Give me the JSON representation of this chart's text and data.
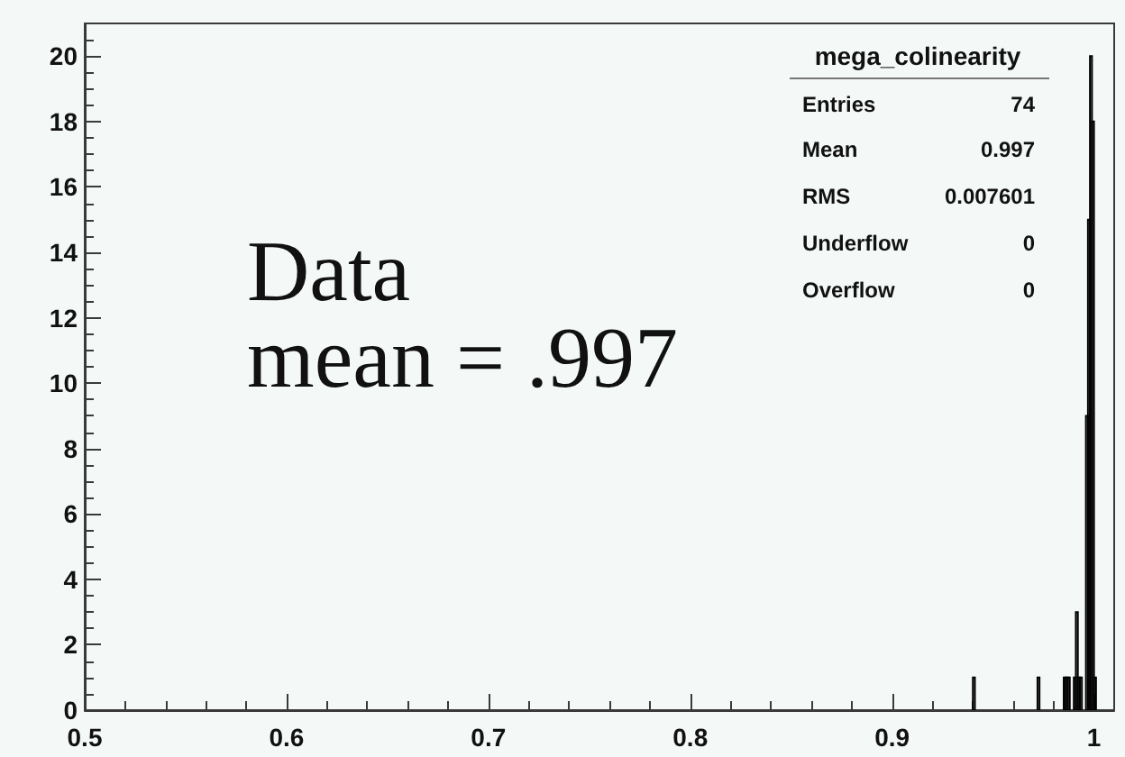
{
  "chart_data": {
    "type": "histogram",
    "bins": [
      0.94,
      0.941,
      0.942,
      0.943,
      0.944,
      0.945,
      0.946,
      0.947,
      0.948,
      0.949,
      0.95,
      0.951,
      0.952,
      0.953,
      0.954,
      0.955,
      0.956,
      0.957,
      0.958,
      0.959,
      0.96,
      0.961,
      0.962,
      0.963,
      0.964,
      0.965,
      0.966,
      0.967,
      0.968,
      0.969,
      0.97,
      0.971,
      0.972,
      0.973,
      0.974,
      0.975,
      0.976,
      0.977,
      0.978,
      0.979,
      0.98,
      0.981,
      0.982,
      0.983,
      0.984,
      0.985,
      0.986,
      0.987,
      0.988,
      0.989,
      0.99,
      0.991,
      0.992,
      0.993,
      0.994,
      0.995,
      0.996,
      0.997,
      0.998,
      0.999,
      1.0,
      1.001
    ],
    "values": [
      1,
      0,
      0,
      0,
      0,
      0,
      0,
      0,
      0,
      0,
      0,
      0,
      0,
      0,
      0,
      0,
      0,
      0,
      0,
      0,
      0,
      0,
      0,
      0,
      0,
      0,
      0,
      0,
      0,
      0,
      0,
      0,
      1,
      0,
      0,
      0,
      0,
      0,
      0,
      0,
      0,
      0,
      0,
      0,
      0,
      1,
      1,
      1,
      0,
      0,
      1,
      3,
      1,
      1,
      0,
      0,
      9,
      15,
      20,
      18,
      1
    ],
    "color": "#000000",
    "xlim": [
      0.5,
      1.01
    ],
    "ylim": [
      0,
      21
    ],
    "xticks": [
      0.5,
      {
        "value": 0.52,
        "label": null
      },
      {
        "value": 0.54,
        "label": null
      },
      {
        "value": 0.56,
        "label": null
      },
      {
        "value": 0.58,
        "label": null
      },
      0.6,
      {
        "value": 0.62,
        "label": null
      },
      {
        "value": 0.64,
        "label": null
      },
      {
        "value": 0.66,
        "label": null
      },
      {
        "value": 0.68,
        "label": null
      },
      0.7,
      {
        "value": 0.72,
        "label": null
      },
      {
        "value": 0.74,
        "label": null
      },
      {
        "value": 0.76,
        "label": null
      },
      {
        "value": 0.78,
        "label": null
      },
      0.8,
      {
        "value": 0.82,
        "label": null
      },
      {
        "value": 0.84,
        "label": null
      },
      {
        "value": 0.86,
        "label": null
      },
      {
        "value": 0.88,
        "label": null
      },
      0.9,
      {
        "value": 0.92,
        "label": null
      },
      {
        "value": 0.94,
        "label": null
      },
      {
        "value": 0.96,
        "label": null
      },
      {
        "value": 0.98,
        "label": null
      },
      1
    ],
    "yticks": [
      0,
      {
        "value": 0.5,
        "label": null
      },
      {
        "value": 1,
        "label": null
      },
      {
        "value": 1.5,
        "label": null
      },
      2,
      {
        "value": 2.5,
        "label": null
      },
      {
        "value": 3,
        "label": null
      },
      {
        "value": 3.5,
        "label": null
      },
      4,
      {
        "value": 4.5,
        "label": null
      },
      {
        "value": 5,
        "label": null
      },
      {
        "value": 5.5,
        "label": null
      },
      6,
      {
        "value": 6.5,
        "label": null
      },
      {
        "value": 7,
        "label": null
      },
      {
        "value": 7.5,
        "label": null
      },
      8,
      {
        "value": 8.5,
        "label": null
      },
      {
        "value": 9,
        "label": null
      },
      {
        "value": 9.5,
        "label": null
      },
      10,
      {
        "value": 10.5,
        "label": null
      },
      {
        "value": 11,
        "label": null
      },
      {
        "value": 11.5,
        "label": null
      },
      12,
      {
        "value": 12.5,
        "label": null
      },
      {
        "value": 13,
        "label": null
      },
      {
        "value": 13.5,
        "label": null
      },
      14,
      {
        "value": 14.5,
        "label": null
      },
      {
        "value": 15,
        "label": null
      },
      {
        "value": 15.5,
        "label": null
      },
      16,
      {
        "value": 16.5,
        "label": null
      },
      {
        "value": 17,
        "label": null
      },
      {
        "value": 17.5,
        "label": null
      },
      18,
      {
        "value": 18.5,
        "label": null
      },
      {
        "value": 19,
        "label": null
      },
      {
        "value": 19.5,
        "label": null
      },
      20,
      {
        "value": 20.5,
        "label": null
      }
    ],
    "annotations": [
      "Data",
      "mean = .997",
      "mega_colinearity",
      "Entries",
      "74",
      "Mean",
      "0.997",
      "RMS",
      "0.007601",
      "Underflow",
      "0",
      "Overflow",
      "0"
    ]
  }
}
